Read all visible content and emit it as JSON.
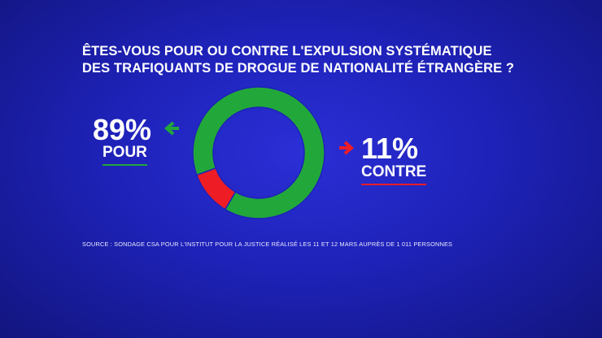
{
  "title": {
    "line1": "ÊTES-VOUS POUR OU CONTRE L'EXPULSION SYSTÉMATIQUE",
    "line2": "DES TRAFIQUANTS DE DROGUE DE NATIONALITÉ ÉTRANGÈRE ?"
  },
  "chart_data": {
    "type": "pie",
    "categories": [
      "POUR",
      "CONTRE"
    ],
    "values": [
      89,
      11
    ],
    "value_labels": [
      "89%",
      "11%"
    ],
    "colors": [
      "#22a83a",
      "#ee1c25"
    ],
    "donut": true,
    "legend": "side labels with arrows"
  },
  "labels": {
    "pour_value": "89%",
    "pour_label": "POUR",
    "contre_value": "11%",
    "contre_label": "CONTRE"
  },
  "colors": {
    "pour": "#22a83a",
    "contre": "#ee1c25",
    "background": "#1e22b8"
  },
  "source": "SOURCE : SONDAGE CSA POUR L'INSTITUT POUR LA JUSTICE RÉALISÉ LES 11 ET 12 MARS AUPRÈS DE 1 011 PERSONNES"
}
